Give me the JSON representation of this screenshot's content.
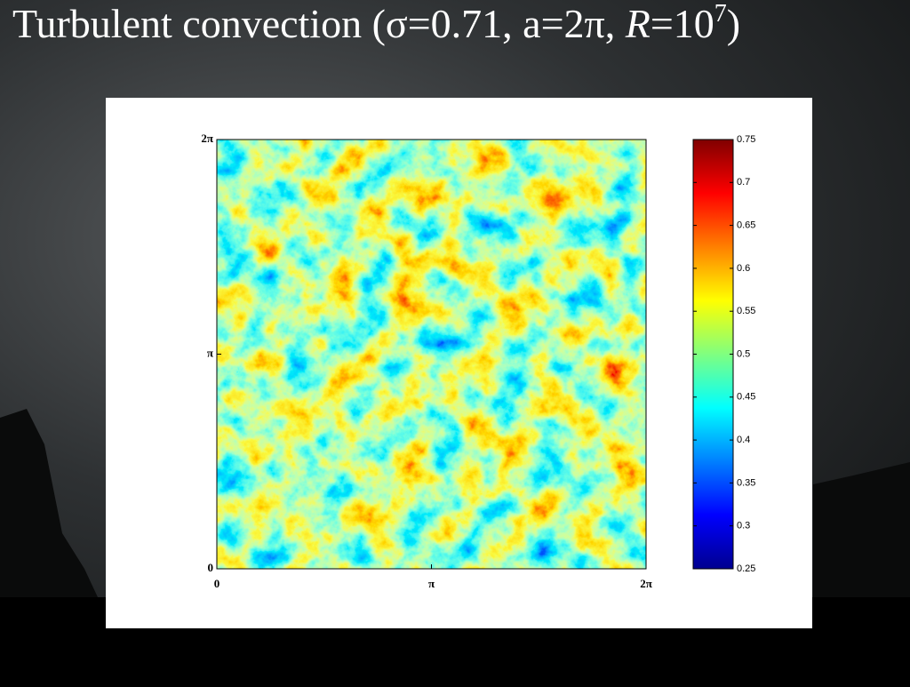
{
  "chart_data": {
    "type": "heatmap",
    "title_parts": [
      "Turbulent convection (σ=0.71, a=2π, ",
      "R",
      "=10",
      "7",
      ")"
    ],
    "xlim": [
      0,
      6.283185
    ],
    "xticks": [
      0,
      {
        "value": 3.141593,
        "label": "π"
      },
      {
        "value": 6.283185,
        "label": "2π"
      }
    ],
    "ylim": [
      0,
      6.283185
    ],
    "yticks": [
      0,
      {
        "value": 3.141593,
        "label": "π"
      },
      {
        "value": 6.283185,
        "label": "2π"
      }
    ],
    "colormap": "jet",
    "clim": [
      0.25,
      0.75
    ],
    "cticks": [
      0.25,
      0.3,
      0.35,
      0.4,
      0.45,
      0.5,
      0.55,
      0.6,
      0.65,
      0.7,
      0.75
    ]
  }
}
